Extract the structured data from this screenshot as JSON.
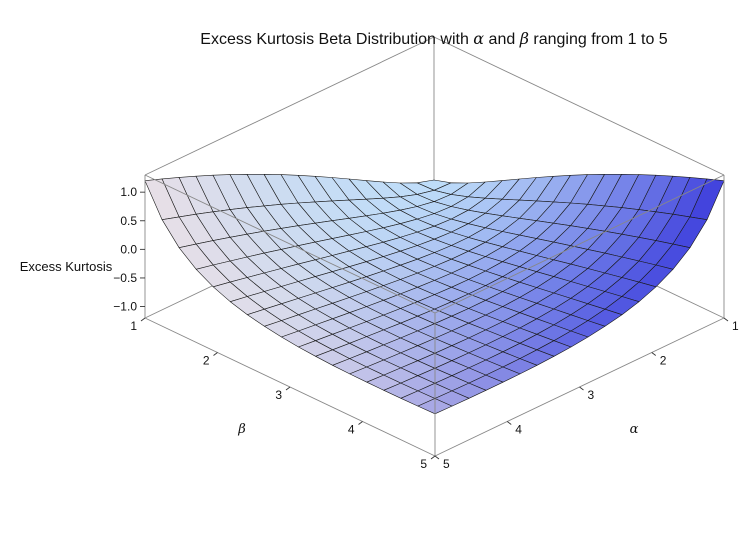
{
  "chart_data": {
    "type": "surface3d",
    "title_parts": [
      "Excess Kurtosis Beta Distribution with ",
      "α",
      " and ",
      "β",
      " ranging from 1 to 5"
    ],
    "zlabel": "Excess Kurtosis",
    "xlabel": "α",
    "ylabel": "β",
    "alpha_range": [
      1,
      5
    ],
    "beta_range": [
      1,
      5
    ],
    "z_range": [
      -1.2,
      1.3
    ],
    "alpha_ticks": [
      "1",
      "2",
      "3",
      "4",
      "5"
    ],
    "beta_ticks": [
      "1",
      "2",
      "3",
      "4",
      "5"
    ],
    "z_ticks": [
      "1.0",
      "0.5",
      "0.0",
      "−0.5",
      "−1.0"
    ],
    "z_tick_values": [
      1.0,
      0.5,
      0.0,
      -0.5,
      -1.0
    ],
    "mesh_divisions": 17,
    "colors": {
      "low": "#a9cff7",
      "high_alpha": "#3d3ddc",
      "high_beta": "#f7e2e2",
      "edge": "#1a1a1a",
      "box": "#888888"
    }
  }
}
